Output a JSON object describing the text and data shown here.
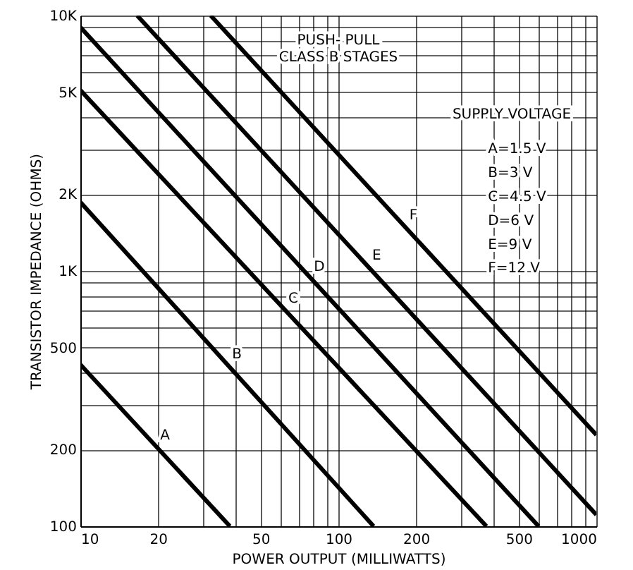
{
  "chart_data": {
    "type": "line",
    "title": "PUSH- PULL\nCLASS B STAGES",
    "xlabel": "POWER OUTPUT (MILLIWATTS)",
    "ylabel": "TRANSISTOR IMPEDANCE (OHMS)",
    "legend_title": "SUPPLY VOLTAGE",
    "series": [
      {
        "name": "A",
        "color": "#000000",
        "x": [
          10,
          38
        ],
        "values": [
          430,
          100
        ]
      },
      {
        "name": "B",
        "color": "#000000",
        "x": [
          10,
          137
        ],
        "values": [
          1860,
          100
        ]
      },
      {
        "name": "C",
        "color": "#000000",
        "x": [
          10,
          375
        ],
        "values": [
          5100,
          100
        ]
      },
      {
        "name": "D",
        "color": "#000000",
        "x": [
          10,
          597
        ],
        "values": [
          9000,
          100
        ]
      },
      {
        "name": "E",
        "color": "#000000",
        "x": [
          16.6,
          1000
        ],
        "values": [
          10000,
          111
        ]
      },
      {
        "name": "F",
        "color": "#000000",
        "x": [
          32,
          1000
        ],
        "values": [
          10000,
          228
        ]
      }
    ],
    "annotations": [
      "A=1.5 V",
      "B=3 V",
      "C=4.5 V",
      "D=6 V",
      "E=9 V",
      "F=12 V"
    ],
    "log": "xy",
    "xlim": [
      10,
      1000
    ],
    "ylim": [
      100,
      10000
    ],
    "xticks": [
      10,
      20,
      {
        "value": 30,
        "label": null
      },
      {
        "value": 40,
        "label": null
      },
      50,
      {
        "value": 60,
        "label": null
      },
      {
        "value": 70,
        "label": null
      },
      {
        "value": 80,
        "label": null
      },
      {
        "value": 90,
        "label": null
      },
      100,
      200,
      {
        "value": 300,
        "label": null
      },
      {
        "value": 400,
        "label": null
      },
      500,
      {
        "value": 600,
        "label": null
      },
      {
        "value": 700,
        "label": null
      },
      {
        "value": 800,
        "label": null
      },
      {
        "value": 900,
        "label": null
      },
      1000
    ],
    "yticks": [
      100,
      200,
      {
        "value": 300,
        "label": null
      },
      {
        "value": 400,
        "label": null
      },
      500,
      {
        "value": 600,
        "label": null
      },
      {
        "value": 700,
        "label": null
      },
      {
        "value": 800,
        "label": null
      },
      {
        "value": 900,
        "label": null
      },
      {
        "value": 1000,
        "label": "1K"
      },
      {
        "value": 2000,
        "label": "2K"
      },
      {
        "value": 3000,
        "label": null
      },
      {
        "value": 4000,
        "label": null
      },
      {
        "value": 5000,
        "label": "5K"
      },
      {
        "value": 6000,
        "label": null
      },
      {
        "value": 7000,
        "label": null
      },
      {
        "value": 8000,
        "label": null
      },
      {
        "value": 9000,
        "label": null
      },
      {
        "value": 10000,
        "label": "10K"
      }
    ],
    "grid": true,
    "marker": "none",
    "line_style": "solid"
  }
}
